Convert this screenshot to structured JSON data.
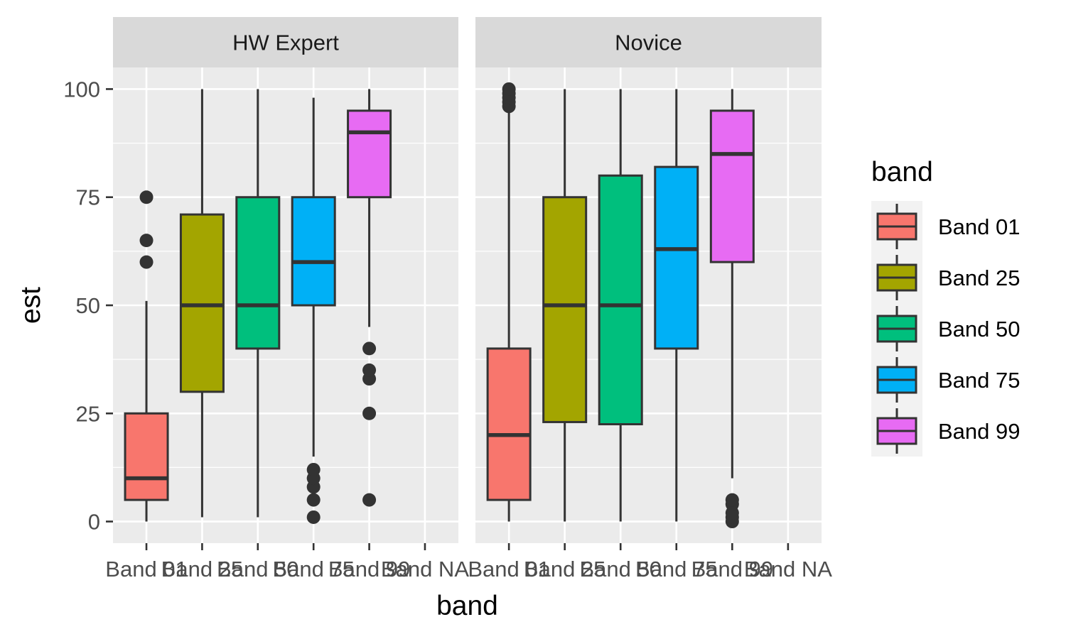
{
  "chart_data": {
    "type": "boxplot",
    "xlabel": "band",
    "ylabel": "est",
    "ylim": [
      -5,
      105
    ],
    "yticks": [
      0,
      25,
      50,
      75,
      100
    ],
    "categories": [
      "Band 01",
      "Band 25",
      "Band 50",
      "Band 75",
      "Band 99",
      "Band NA"
    ],
    "legend": {
      "title": "band",
      "position": "right",
      "entries": [
        {
          "label": "Band 01",
          "color": "#F8766D"
        },
        {
          "label": "Band 25",
          "color": "#A3A500"
        },
        {
          "label": "Band 50",
          "color": "#00BF7D"
        },
        {
          "label": "Band 75",
          "color": "#00B0F6"
        },
        {
          "label": "Band 99",
          "color": "#E76BF3"
        }
      ]
    },
    "facets": [
      {
        "label": "HW Expert",
        "boxes": [
          {
            "category": "Band 01",
            "min": 0,
            "q1": 5,
            "median": 10,
            "q3": 25,
            "max": 51,
            "outliers": [
              60,
              65,
              75
            ]
          },
          {
            "category": "Band 25",
            "min": 1,
            "q1": 30,
            "median": 50,
            "q3": 71,
            "max": 100,
            "outliers": []
          },
          {
            "category": "Band 50",
            "min": 1,
            "q1": 40,
            "median": 50,
            "q3": 75,
            "max": 100,
            "outliers": []
          },
          {
            "category": "Band 75",
            "min": 15,
            "q1": 50,
            "median": 60,
            "q3": 75,
            "max": 98,
            "outliers": [
              1,
              5,
              8,
              10,
              12
            ]
          },
          {
            "category": "Band 99",
            "min": 45,
            "q1": 75,
            "median": 90,
            "q3": 95,
            "max": 100,
            "outliers": [
              5,
              25,
              33,
              35,
              40
            ]
          }
        ]
      },
      {
        "label": "Novice",
        "boxes": [
          {
            "category": "Band 01",
            "min": 0,
            "q1": 5,
            "median": 20,
            "q3": 40,
            "max": 95,
            "outliers": [
              96,
              97,
              98,
              99,
              100
            ]
          },
          {
            "category": "Band 25",
            "min": 0,
            "q1": 23,
            "median": 50,
            "q3": 75,
            "max": 100,
            "outliers": []
          },
          {
            "category": "Band 50",
            "min": 0,
            "q1": 22.5,
            "median": 50,
            "q3": 80,
            "max": 100,
            "outliers": []
          },
          {
            "category": "Band 75",
            "min": 0,
            "q1": 40,
            "median": 63,
            "q3": 82,
            "max": 100,
            "outliers": []
          },
          {
            "category": "Band 99",
            "min": 10,
            "q1": 60,
            "median": 85,
            "q3": 95,
            "max": 100,
            "outliers": [
              0,
              1,
              2,
              4,
              5
            ]
          }
        ]
      }
    ],
    "colors": {
      "panel_bg": "#EBEBEB",
      "strip_bg": "#D9D9D9",
      "grid": "#FFFFFF",
      "outline": "#333333",
      "text": "#4D4D4D"
    }
  }
}
